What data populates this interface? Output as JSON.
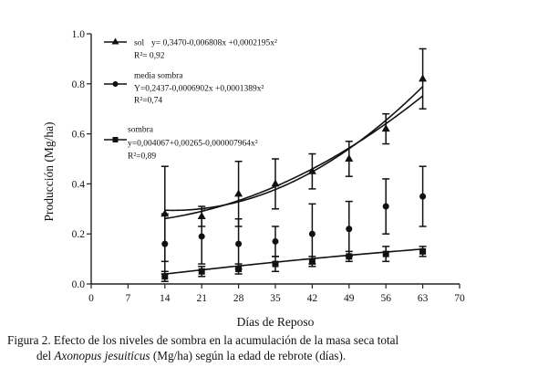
{
  "chart_data": {
    "type": "scatter",
    "xlabel": "Días de Reposo",
    "ylabel": "Producción  (Mg/ha)",
    "xlim": [
      0,
      70
    ],
    "ylim": [
      0,
      1.0
    ],
    "x_ticks": [
      "0",
      "7",
      "14",
      "21",
      "28",
      "35",
      "42",
      "49",
      "56",
      "63",
      "70"
    ],
    "y_ticks": [
      "0.0",
      "0.2",
      "0.4",
      "0.6",
      "0.8",
      "1.0"
    ],
    "x": [
      14,
      21,
      28,
      35,
      42,
      49,
      56,
      63
    ],
    "series": [
      {
        "name": "sol",
        "marker": "triangle",
        "equation": "y= 0,3470-0,006808x +0,0002195x²",
        "r2": "R²= 0,92",
        "values": [
          0.28,
          0.27,
          0.36,
          0.4,
          0.45,
          0.5,
          0.62,
          0.82
        ],
        "err": [
          0.19,
          0.04,
          0.13,
          0.1,
          0.07,
          0.07,
          0.06,
          0.12
        ],
        "fit": [
          0.347,
          -0.006808,
          0.0002195
        ]
      },
      {
        "name": "media sombra",
        "marker": "circle",
        "equation": "Y=0,2437-0,0006902x +0,0001389x²",
        "r2": "R²=0,74",
        "values": [
          0.16,
          0.19,
          0.16,
          0.17,
          0.2,
          0.22,
          0.31,
          0.35
        ],
        "err": [
          0.12,
          0.11,
          0.1,
          0.06,
          0.12,
          0.11,
          0.11,
          0.12
        ],
        "fit": [
          0.2437,
          -0.0006902,
          0.0001389
        ]
      },
      {
        "name": "sombra",
        "marker": "square",
        "equation": "y=0,004067+0,00265-0,000007964x²",
        "r2": "R²=0,89",
        "values": [
          0.03,
          0.05,
          0.06,
          0.08,
          0.09,
          0.11,
          0.12,
          0.13
        ],
        "err": [
          0.02,
          0.02,
          0.02,
          0.03,
          0.02,
          0.02,
          0.03,
          0.02
        ],
        "fit": [
          0.004067,
          0.00265,
          -7.964e-06
        ]
      }
    ],
    "legend_position": "top-left"
  },
  "caption": {
    "line1": "Figura 2. Efecto de los niveles de sombra en la acumulación de la masa seca total",
    "line2_pre": "del ",
    "line2_italic": "Axonopus jesuiticus",
    "line2_post": " (Mg/ha) según la edad de rebrote (días)."
  }
}
